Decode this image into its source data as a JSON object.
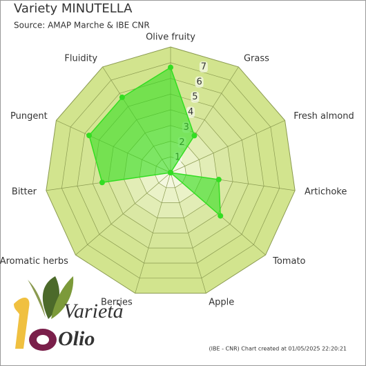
{
  "chart_data": {
    "type": "radar",
    "title": "Variety MINUTELLA",
    "subtitle": "Source: AMAP Marche & IBE CNR",
    "categories": [
      "Olive fruity",
      "Grass",
      "Fresh almond",
      "Artichoke",
      "Tomato",
      "Apple",
      "Berries",
      "Aromatic herbs",
      "Bitter",
      "Pungent",
      "Fluidity"
    ],
    "values": [
      6.7,
      2.8,
      0,
      3.1,
      4.2,
      0,
      0,
      0,
      4.4,
      5.7,
      5.7
    ],
    "color": "#33dd22",
    "ylim": [
      0,
      8
    ],
    "yticks": [
      1,
      2,
      3,
      4,
      5,
      6,
      7
    ],
    "annotation": "(IBE - CNR) Chart created at 01/05/2025 22:20:21",
    "logo": [
      "Varietà",
      "Olio"
    ]
  }
}
